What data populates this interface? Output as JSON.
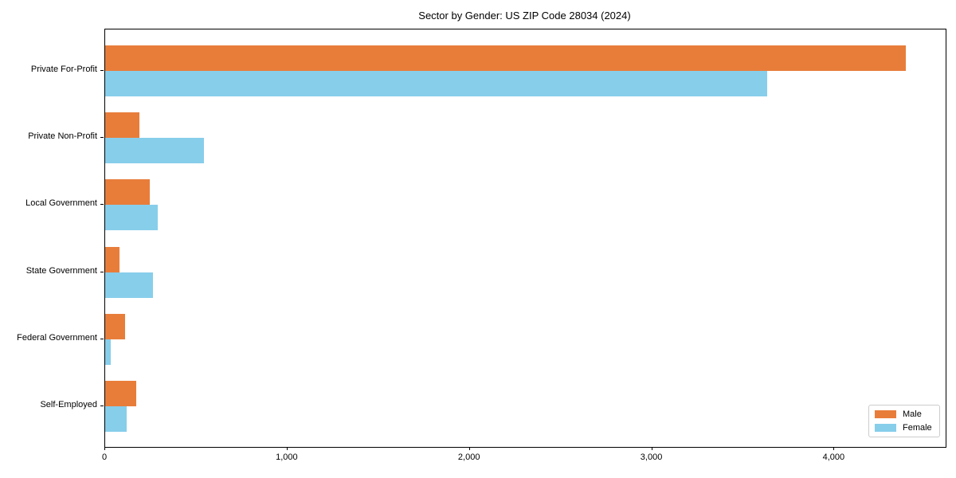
{
  "chart_data": {
    "type": "bar",
    "orientation": "horizontal",
    "title": "Sector by Gender: US ZIP Code 28034 (2024)",
    "categories": [
      "Private For-Profit",
      "Private Non-Profit",
      "Local Government",
      "State Government",
      "Federal Government",
      "Self-Employed"
    ],
    "series": [
      {
        "name": "Male",
        "color": "#e87d3a",
        "values": [
          4390,
          190,
          245,
          80,
          110,
          170
        ]
      },
      {
        "name": "Female",
        "color": "#87ceeb",
        "values": [
          3630,
          540,
          290,
          260,
          30,
          120
        ]
      }
    ],
    "xlabel": "",
    "ylabel": "",
    "xlim": [
      0,
      4610
    ],
    "xticks": [
      0,
      1000,
      2000,
      3000,
      4000
    ],
    "xtick_labels": [
      "0",
      "1,000",
      "2,000",
      "3,000",
      "4,000"
    ],
    "grid": false,
    "legend": {
      "position": "lower right",
      "entries": [
        "Male",
        "Female"
      ]
    }
  }
}
